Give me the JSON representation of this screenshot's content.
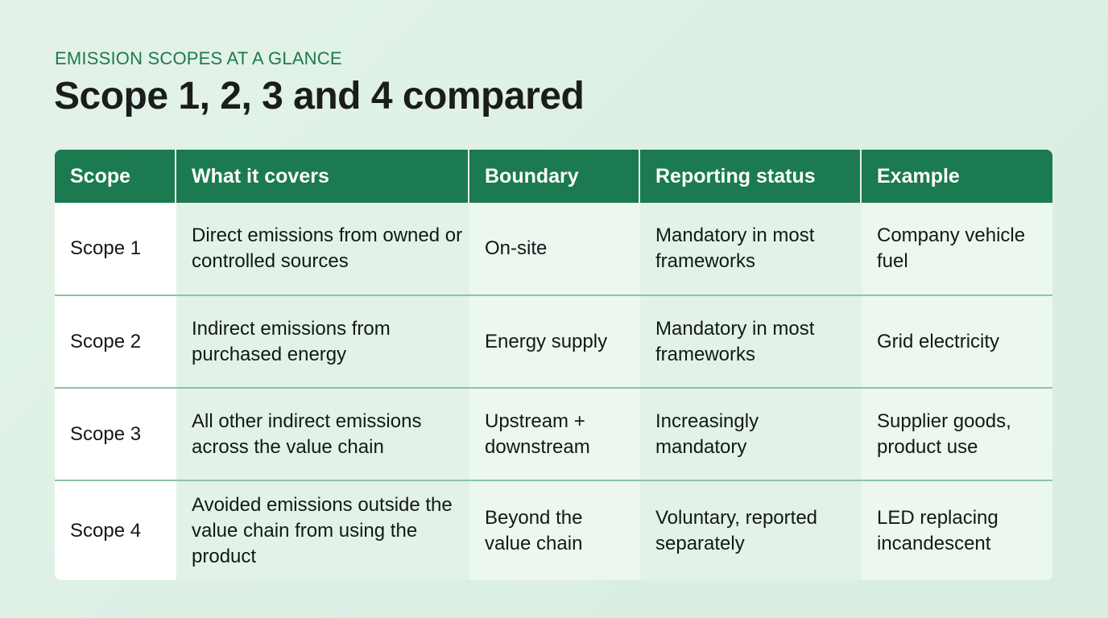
{
  "header": {
    "eyebrow": "EMISSION SCOPES AT A GLANCE",
    "title": "Scope 1, 2, 3 and 4 compared"
  },
  "colors": {
    "accent": "#1b7a4f",
    "eyebrow": "#1e7a4c",
    "background": "#e0f1e6",
    "row_divider": "#8cc4a5"
  },
  "table": {
    "columns": [
      "Scope",
      "What it covers",
      "Boundary",
      "Reporting status",
      "Example"
    ],
    "rows": [
      {
        "scope": "Scope 1",
        "covers": "Direct emissions from owned or controlled sources",
        "boundary": "On-site",
        "status": "Mandatory in most frameworks",
        "example": "Company vehicle fuel"
      },
      {
        "scope": "Scope 2",
        "covers": "Indirect emissions from purchased energy",
        "boundary": "Energy supply",
        "status": "Mandatory in most frameworks",
        "example": "Grid electricity"
      },
      {
        "scope": "Scope 3",
        "covers": "All other indirect emissions across the value chain",
        "boundary": "Upstream + downstream",
        "status": "Increasingly mandatory",
        "example": "Supplier goods, product use"
      },
      {
        "scope": "Scope 4",
        "covers": "Avoided emissions outside the value chain from using the product",
        "boundary": "Beyond the value chain",
        "status": "Voluntary, reported separately",
        "example": "LED replacing incandescent"
      }
    ]
  }
}
